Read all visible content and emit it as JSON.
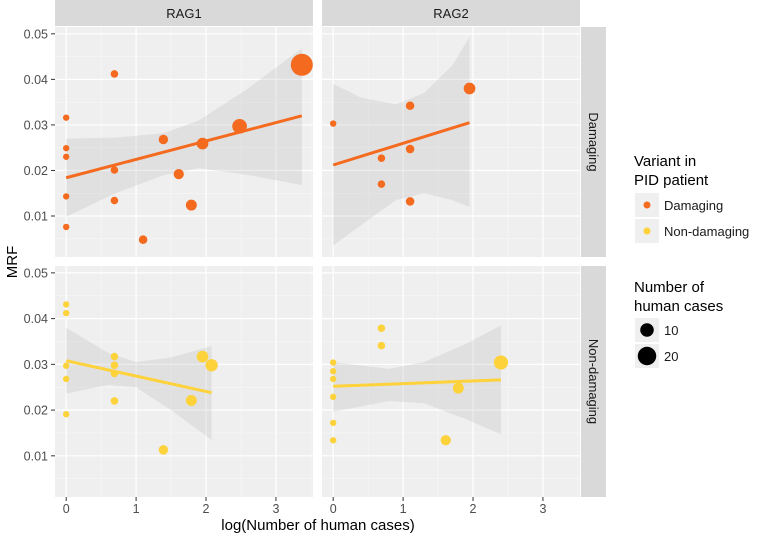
{
  "chart_data": {
    "type": "scatter",
    "title": "",
    "xlabel": "log(Number of human cases)",
    "ylabel": "MRF",
    "xlim": [
      -0.16,
      3.53
    ],
    "ylim": [
      0.001,
      0.0515
    ],
    "x_ticks": [
      "0",
      "1",
      "2",
      "3"
    ],
    "x_tick_values": [
      0,
      1,
      2,
      3
    ],
    "y_ticks": [
      "0.01",
      "0.02",
      "0.03",
      "0.04",
      "0.05"
    ],
    "y_tick_values": [
      0.01,
      0.02,
      0.03,
      0.04,
      0.05
    ],
    "grid": true,
    "col_facets": [
      "RAG1",
      "RAG2"
    ],
    "row_facets": [
      "Damaging",
      "Non-damaging"
    ],
    "colors": {
      "Damaging": "#F46A1E",
      "Non-damaging": "#FDD23A"
    },
    "legend": {
      "placement": "right",
      "color_title": [
        "Variant in",
        "PID patient"
      ],
      "color_items": [
        "Damaging",
        "Non-damaging"
      ],
      "size_title": [
        "Number of",
        "human cases"
      ],
      "size_items": [
        "10",
        "20"
      ],
      "size_values": [
        10,
        20
      ]
    },
    "panels": [
      {
        "col": "RAG1",
        "row": "Damaging",
        "points": [
          [
            0,
            0.0316
          ],
          [
            0,
            0.0249
          ],
          [
            0,
            0.023
          ],
          [
            0,
            0.0143
          ],
          [
            0,
            0.0076
          ],
          [
            0.69,
            0.0412
          ],
          [
            0.69,
            0.0201
          ],
          [
            0.69,
            0.0134
          ],
          [
            1.1,
            0.0048
          ],
          [
            1.39,
            0.0268
          ],
          [
            1.61,
            0.0192
          ],
          [
            1.79,
            0.0124
          ],
          [
            1.95,
            0.0259
          ],
          [
            2.48,
            0.0297
          ],
          [
            3.37,
            0.0432
          ]
        ],
        "fit": [
          [
            0,
            0.0184
          ],
          [
            3.37,
            0.032
          ]
        ],
        "ci": [
          [
            0,
            0.0098,
            0.027
          ],
          [
            0.7,
            0.015,
            0.0272
          ],
          [
            1.4,
            0.019,
            0.0282
          ],
          [
            1.9,
            0.0205,
            0.031
          ],
          [
            2.6,
            0.019,
            0.038
          ],
          [
            3.37,
            0.0168,
            0.0468
          ]
        ]
      },
      {
        "col": "RAG2",
        "row": "Damaging",
        "points": [
          [
            0,
            0.0303
          ],
          [
            0.69,
            0.0227
          ],
          [
            0.69,
            0.017
          ],
          [
            1.1,
            0.0342
          ],
          [
            1.1,
            0.0247
          ],
          [
            1.1,
            0.0132
          ],
          [
            1.95,
            0.038
          ]
        ],
        "fit": [
          [
            0,
            0.0212
          ],
          [
            1.95,
            0.0305
          ]
        ],
        "ci": [
          [
            0,
            0.0035,
            0.039
          ],
          [
            0.4,
            0.008,
            0.036
          ],
          [
            0.9,
            0.0135,
            0.0345
          ],
          [
            1.3,
            0.015,
            0.037
          ],
          [
            1.7,
            0.0135,
            0.043
          ],
          [
            1.95,
            0.012,
            0.0493
          ]
        ]
      },
      {
        "col": "RAG1",
        "row": "Non-damaging",
        "points": [
          [
            0,
            0.0431
          ],
          [
            0,
            0.0412
          ],
          [
            0,
            0.0297
          ],
          [
            0,
            0.0268
          ],
          [
            0,
            0.0191
          ],
          [
            0.69,
            0.0317
          ],
          [
            0.69,
            0.0298
          ],
          [
            0.69,
            0.028
          ],
          [
            0.69,
            0.022
          ],
          [
            1.39,
            0.0113
          ],
          [
            1.79,
            0.0221
          ],
          [
            1.95,
            0.0317
          ],
          [
            2.08,
            0.0298
          ]
        ],
        "fit": [
          [
            0,
            0.0308
          ],
          [
            2.08,
            0.0238
          ]
        ],
        "ci": [
          [
            0,
            0.0236,
            0.038
          ],
          [
            0.6,
            0.0255,
            0.0325
          ],
          [
            1.0,
            0.025,
            0.0305
          ],
          [
            1.5,
            0.02,
            0.0315
          ],
          [
            2.08,
            0.0135,
            0.034
          ]
        ]
      },
      {
        "col": "RAG2",
        "row": "Non-damaging",
        "points": [
          [
            0,
            0.0304
          ],
          [
            0,
            0.0285
          ],
          [
            0,
            0.0268
          ],
          [
            0,
            0.0229
          ],
          [
            0,
            0.0172
          ],
          [
            0,
            0.0134
          ],
          [
            0.69,
            0.0379
          ],
          [
            0.69,
            0.0341
          ],
          [
            1.61,
            0.0134
          ],
          [
            1.79,
            0.0248
          ],
          [
            2.4,
            0.0304
          ]
        ],
        "fit": [
          [
            0,
            0.0252
          ],
          [
            2.4,
            0.0266
          ]
        ],
        "ci": [
          [
            0,
            0.0196,
            0.0305
          ],
          [
            0.8,
            0.022,
            0.029
          ],
          [
            1.3,
            0.0215,
            0.0305
          ],
          [
            1.9,
            0.018,
            0.0345
          ],
          [
            2.4,
            0.0147,
            0.0385
          ]
        ]
      }
    ]
  }
}
